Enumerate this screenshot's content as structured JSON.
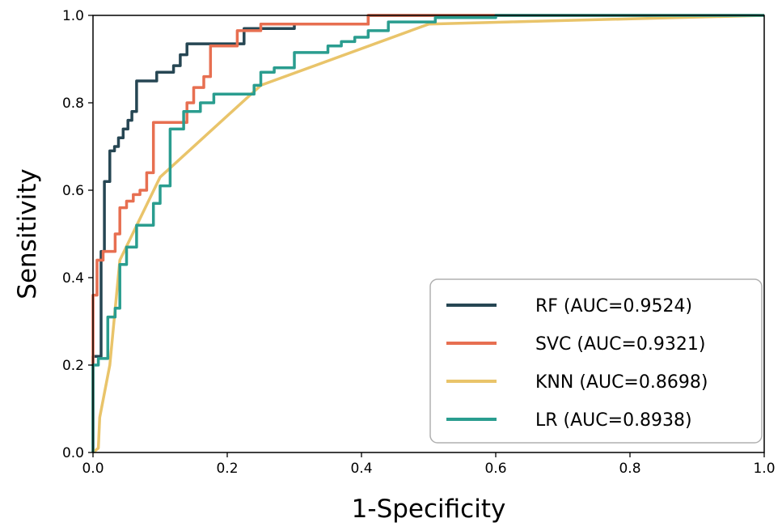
{
  "chart_data": {
    "type": "line",
    "title": "",
    "xlabel": "1-Specificity",
    "ylabel": "Sensitivity",
    "xlim": [
      0.0,
      1.0
    ],
    "ylim": [
      0.0,
      1.0
    ],
    "xticks": [
      "0.0",
      "0.2",
      "0.4",
      "0.6",
      "0.8",
      "1.0"
    ],
    "yticks": [
      "0.0",
      "0.2",
      "0.4",
      "0.6",
      "0.8",
      "1.0"
    ],
    "grid": false,
    "legend_position": "bottom-right",
    "series": [
      {
        "name": "RF",
        "label": "RF (AUC=0.9524)",
        "color": "#264653",
        "points": [
          [
            0,
            0
          ],
          [
            0,
            0.22
          ],
          [
            0.012,
            0.22
          ],
          [
            0.012,
            0.46
          ],
          [
            0.017,
            0.46
          ],
          [
            0.017,
            0.62
          ],
          [
            0.025,
            0.62
          ],
          [
            0.025,
            0.69
          ],
          [
            0.032,
            0.69
          ],
          [
            0.032,
            0.7
          ],
          [
            0.038,
            0.7
          ],
          [
            0.038,
            0.72
          ],
          [
            0.045,
            0.72
          ],
          [
            0.045,
            0.74
          ],
          [
            0.052,
            0.74
          ],
          [
            0.052,
            0.76
          ],
          [
            0.058,
            0.76
          ],
          [
            0.058,
            0.78
          ],
          [
            0.065,
            0.78
          ],
          [
            0.065,
            0.85
          ],
          [
            0.095,
            0.85
          ],
          [
            0.095,
            0.87
          ],
          [
            0.12,
            0.87
          ],
          [
            0.12,
            0.885
          ],
          [
            0.13,
            0.885
          ],
          [
            0.13,
            0.91
          ],
          [
            0.14,
            0.91
          ],
          [
            0.14,
            0.935
          ],
          [
            0.225,
            0.935
          ],
          [
            0.225,
            0.97
          ],
          [
            0.3,
            0.97
          ],
          [
            0.3,
            0.98
          ],
          [
            0.41,
            0.98
          ],
          [
            0.41,
            1.0
          ],
          [
            1.0,
            1.0
          ]
        ]
      },
      {
        "name": "SVC",
        "label": "SVC (AUC=0.9321)",
        "color": "#e76f51",
        "points": [
          [
            0,
            0
          ],
          [
            0,
            0.36
          ],
          [
            0.006,
            0.36
          ],
          [
            0.006,
            0.44
          ],
          [
            0.015,
            0.44
          ],
          [
            0.015,
            0.46
          ],
          [
            0.033,
            0.46
          ],
          [
            0.033,
            0.5
          ],
          [
            0.04,
            0.5
          ],
          [
            0.04,
            0.56
          ],
          [
            0.05,
            0.56
          ],
          [
            0.05,
            0.575
          ],
          [
            0.06,
            0.575
          ],
          [
            0.06,
            0.59
          ],
          [
            0.07,
            0.59
          ],
          [
            0.07,
            0.6
          ],
          [
            0.08,
            0.6
          ],
          [
            0.08,
            0.64
          ],
          [
            0.09,
            0.64
          ],
          [
            0.09,
            0.755
          ],
          [
            0.14,
            0.755
          ],
          [
            0.14,
            0.8
          ],
          [
            0.15,
            0.8
          ],
          [
            0.15,
            0.835
          ],
          [
            0.165,
            0.835
          ],
          [
            0.165,
            0.86
          ],
          [
            0.175,
            0.86
          ],
          [
            0.175,
            0.93
          ],
          [
            0.215,
            0.93
          ],
          [
            0.215,
            0.965
          ],
          [
            0.25,
            0.965
          ],
          [
            0.25,
            0.98
          ],
          [
            0.41,
            0.98
          ],
          [
            0.41,
            1.0
          ],
          [
            1.0,
            1.0
          ]
        ]
      },
      {
        "name": "KNN",
        "label": "KNN (AUC=0.8698)",
        "color": "#e9c46a",
        "points": [
          [
            0,
            0
          ],
          [
            0.008,
            0.01
          ],
          [
            0.01,
            0.08
          ],
          [
            0.025,
            0.2
          ],
          [
            0.04,
            0.44
          ],
          [
            0.1,
            0.63
          ],
          [
            0.25,
            0.84
          ],
          [
            0.5,
            0.98
          ],
          [
            0.62,
            0.985
          ],
          [
            1.0,
            1.0
          ]
        ]
      },
      {
        "name": "LR",
        "label": "LR (AUC=0.8938)",
        "color": "#2a9d8f",
        "points": [
          [
            0,
            0
          ],
          [
            0,
            0.2
          ],
          [
            0.008,
            0.2
          ],
          [
            0.008,
            0.215
          ],
          [
            0.022,
            0.215
          ],
          [
            0.022,
            0.31
          ],
          [
            0.033,
            0.31
          ],
          [
            0.033,
            0.33
          ],
          [
            0.04,
            0.33
          ],
          [
            0.04,
            0.43
          ],
          [
            0.05,
            0.43
          ],
          [
            0.05,
            0.47
          ],
          [
            0.065,
            0.47
          ],
          [
            0.065,
            0.52
          ],
          [
            0.09,
            0.52
          ],
          [
            0.09,
            0.57
          ],
          [
            0.1,
            0.57
          ],
          [
            0.1,
            0.61
          ],
          [
            0.115,
            0.61
          ],
          [
            0.115,
            0.74
          ],
          [
            0.135,
            0.74
          ],
          [
            0.135,
            0.78
          ],
          [
            0.16,
            0.78
          ],
          [
            0.16,
            0.8
          ],
          [
            0.18,
            0.8
          ],
          [
            0.18,
            0.82
          ],
          [
            0.24,
            0.82
          ],
          [
            0.24,
            0.84
          ],
          [
            0.25,
            0.84
          ],
          [
            0.25,
            0.87
          ],
          [
            0.27,
            0.87
          ],
          [
            0.27,
            0.88
          ],
          [
            0.3,
            0.88
          ],
          [
            0.3,
            0.915
          ],
          [
            0.35,
            0.915
          ],
          [
            0.35,
            0.93
          ],
          [
            0.37,
            0.93
          ],
          [
            0.37,
            0.94
          ],
          [
            0.39,
            0.94
          ],
          [
            0.39,
            0.95
          ],
          [
            0.41,
            0.95
          ],
          [
            0.41,
            0.965
          ],
          [
            0.44,
            0.965
          ],
          [
            0.44,
            0.985
          ],
          [
            0.51,
            0.985
          ],
          [
            0.51,
            0.995
          ],
          [
            0.6,
            0.995
          ],
          [
            0.6,
            1.0
          ],
          [
            1.0,
            1.0
          ]
        ]
      }
    ]
  }
}
